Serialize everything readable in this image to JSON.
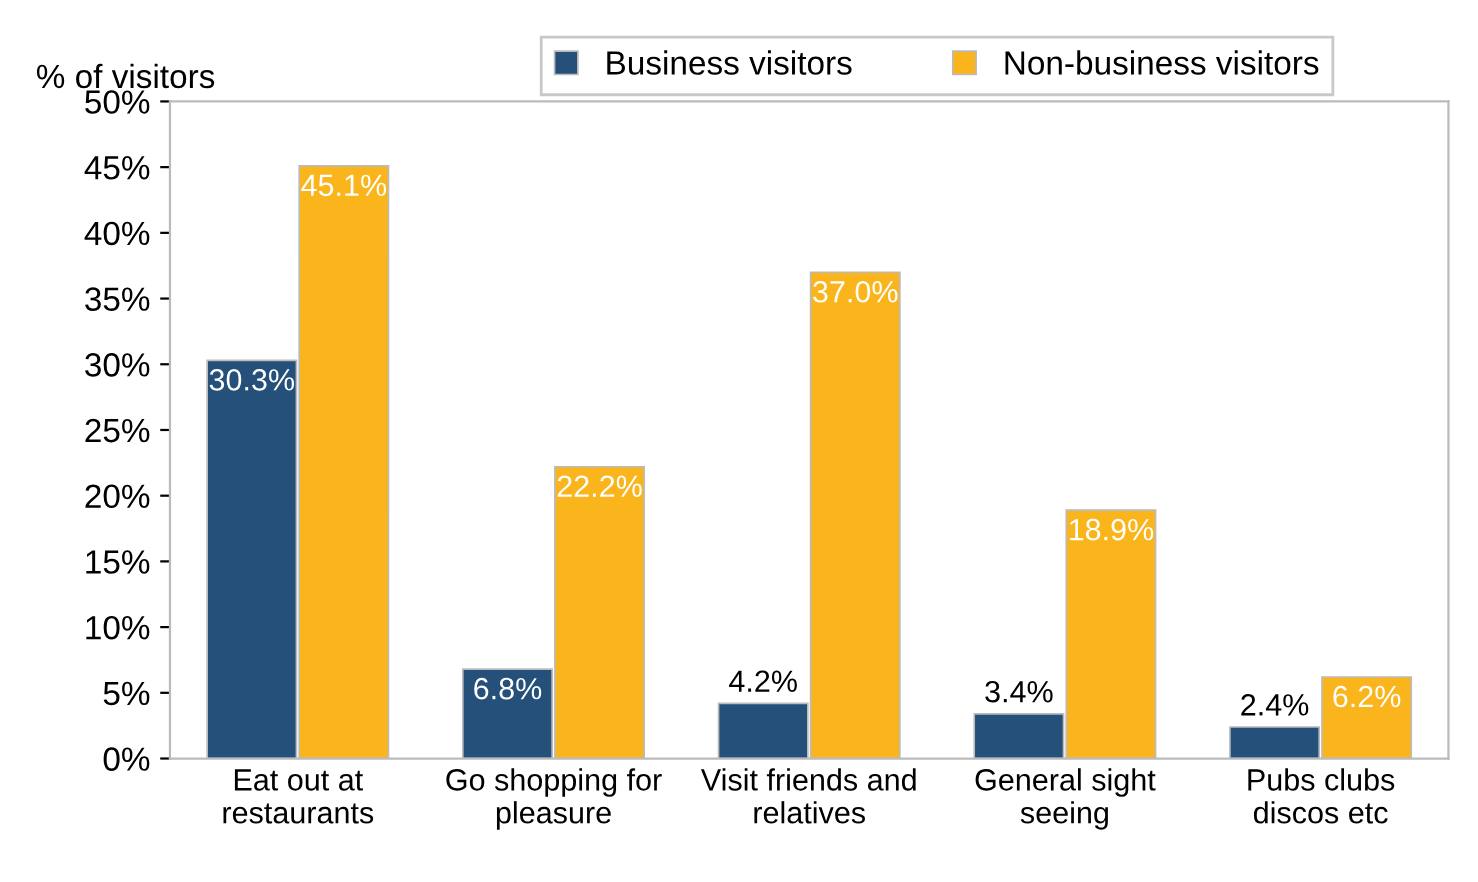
{
  "chart_data": {
    "type": "bar",
    "ylabel": "% of visitors",
    "categories": [
      "Eat out at\nrestaurants",
      "Go shopping for\npleasure",
      "Visit friends and\nrelatives",
      "General sight\nseeing",
      "Pubs clubs\ndiscos etc"
    ],
    "series": [
      {
        "name": "Business visitors",
        "color": "#24507a",
        "values": [
          30.3,
          6.8,
          4.2,
          3.4,
          2.4
        ],
        "value_labels": [
          "30.3%",
          "6.8%",
          "4.2%",
          "3.4%",
          "2.4%"
        ]
      },
      {
        "name": "Non-business visitors",
        "color": "#fbb51c",
        "values": [
          45.1,
          22.2,
          37.0,
          18.9,
          6.2
        ],
        "value_labels": [
          "45.1%",
          "22.2%",
          "37.0%",
          "18.9%",
          "6.2%"
        ]
      }
    ],
    "ylim": [
      0,
      50
    ],
    "yticks": [
      {
        "value": 0,
        "label": "0%"
      },
      {
        "value": 5,
        "label": "5%"
      },
      {
        "value": 10,
        "label": "10%"
      },
      {
        "value": 15,
        "label": "15%"
      },
      {
        "value": 20,
        "label": "20%"
      },
      {
        "value": 25,
        "label": "25%"
      },
      {
        "value": 30,
        "label": "30%"
      },
      {
        "value": 35,
        "label": "35%"
      },
      {
        "value": 40,
        "label": "40%"
      },
      {
        "value": 45,
        "label": "45%"
      },
      {
        "value": 50,
        "label": "50%"
      }
    ],
    "grid": false,
    "legend": "top"
  }
}
